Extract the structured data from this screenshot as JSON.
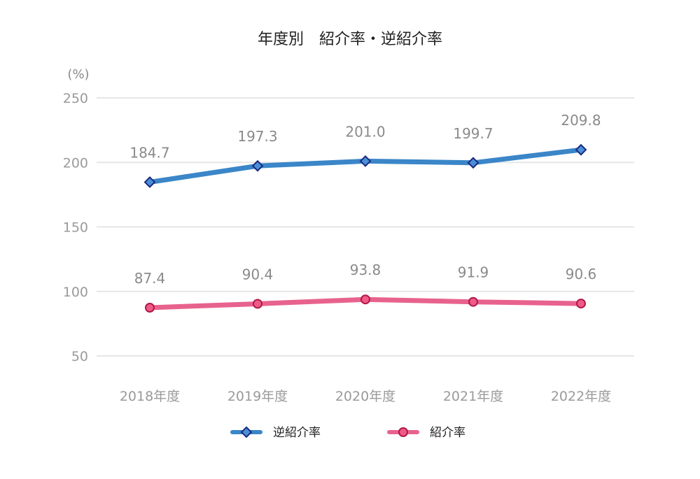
{
  "chart_data": {
    "type": "line",
    "title": "年度別　紹介率・逆紹介率",
    "ylabel": "(%)",
    "xlabel": "",
    "categories": [
      "2018年度",
      "2019年度",
      "2020年度",
      "2021年度",
      "2022年度"
    ],
    "ylim": [
      50,
      250
    ],
    "yticks": [
      50,
      100,
      150,
      200,
      250
    ],
    "grid": true,
    "legend_position": "bottom",
    "series": [
      {
        "name": "逆紹介率",
        "values": [
          184.7,
          197.3,
          201.0,
          199.7,
          209.8
        ],
        "labels": [
          "184.7",
          "197.3",
          "201.0",
          "199.7",
          "209.8"
        ],
        "color": "#3a86c8",
        "marker": "diamond",
        "marker_fill": "#4a8fd6",
        "marker_stroke": "#1a2a80"
      },
      {
        "name": "紹介率",
        "values": [
          87.4,
          90.4,
          93.8,
          91.9,
          90.6
        ],
        "labels": [
          "87.4",
          "90.4",
          "93.8",
          "91.9",
          "90.6"
        ],
        "color": "#e8628e",
        "marker": "circle",
        "marker_fill": "#ef5b86",
        "marker_stroke": "#b0184a"
      }
    ]
  }
}
